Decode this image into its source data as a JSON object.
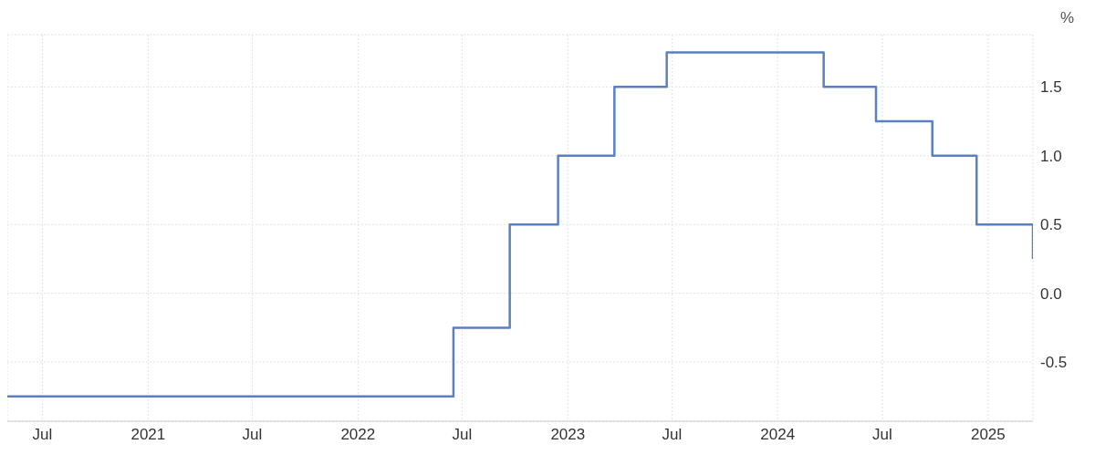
{
  "chart_data": {
    "type": "step",
    "ylabel": "%",
    "x": [
      "2020-05-01",
      "2022-06-16",
      "2022-09-22",
      "2022-12-15",
      "2023-03-23",
      "2023-06-22",
      "2024-03-21",
      "2024-06-20",
      "2024-09-26",
      "2024-12-12",
      "2025-03-20"
    ],
    "series": [
      {
        "color": "#5b80c2",
        "values": [
          -0.75,
          -0.25,
          0.5,
          1.0,
          1.5,
          1.75,
          1.5,
          1.25,
          1.0,
          0.5,
          0.25
        ]
      }
    ],
    "xlim": [
      "2020-05-01",
      "2025-03-20"
    ],
    "xticks": [
      {
        "value": "2020-07-01",
        "label": "Jul"
      },
      {
        "value": "2021-01-01",
        "label": "2021"
      },
      {
        "value": "2021-07-01",
        "label": "Jul"
      },
      {
        "value": "2022-01-01",
        "label": "2022"
      },
      {
        "value": "2022-07-01",
        "label": "Jul"
      },
      {
        "value": "2023-01-01",
        "label": "2023"
      },
      {
        "value": "2023-07-01",
        "label": "Jul"
      },
      {
        "value": "2024-01-01",
        "label": "2024"
      },
      {
        "value": "2024-07-01",
        "label": "Jul"
      },
      {
        "value": "2025-01-01",
        "label": "2025"
      }
    ],
    "ylim": [
      -0.93,
      1.88
    ],
    "yticks": [
      -0.5,
      {
        "value": 0,
        "label": "0.0"
      },
      0.5,
      {
        "value": 1,
        "label": "1.0"
      },
      1.5
    ],
    "grid": true,
    "legend": false,
    "line_style": "solid",
    "marker": "none"
  }
}
